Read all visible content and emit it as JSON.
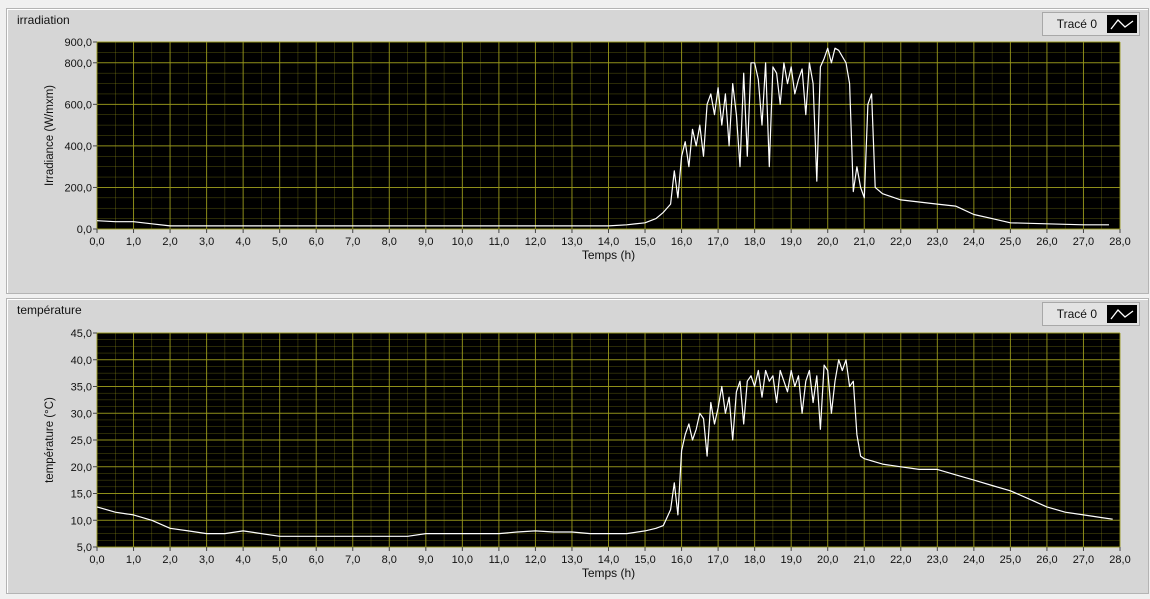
{
  "chart_data": [
    {
      "type": "line",
      "panel_title": "irradiation",
      "legend": {
        "label": "Tracé 0"
      },
      "xlabel": "Temps (h)",
      "ylabel": "Irradiance (W/mxm)",
      "xlim": [
        0,
        28
      ],
      "ylim": [
        0,
        900
      ],
      "xticks": [
        "0,0",
        "1,0",
        "2,0",
        "3,0",
        "4,0",
        "5,0",
        "6,0",
        "7,0",
        "8,0",
        "9,0",
        "10,0",
        "11,0",
        "12,0",
        "13,0",
        "14,0",
        "15,0",
        "16,0",
        "17,0",
        "18,0",
        "19,0",
        "20,0",
        "21,0",
        "22,0",
        "23,0",
        "24,0",
        "25,0",
        "26,0",
        "27,0",
        "28,0"
      ],
      "yticks": [
        {
          "v": 0,
          "label": "0,0"
        },
        {
          "v": 200,
          "label": "200,0"
        },
        {
          "v": 400,
          "label": "400,0"
        },
        {
          "v": 600,
          "label": "600,0"
        },
        {
          "v": 800,
          "label": "800,0"
        },
        {
          "v": 900,
          "label": "900,0"
        }
      ],
      "grid": true,
      "colors": {
        "plot_bg": "#000000",
        "grid": "#9a9a1c",
        "line": "#ffffff"
      },
      "series": [
        {
          "x": [
            0,
            0.5,
            1,
            1.5,
            2,
            3,
            4,
            5,
            6,
            7,
            8,
            9,
            10,
            11,
            12,
            13,
            14,
            14.5,
            15,
            15.3,
            15.5,
            15.7,
            15.8,
            15.9,
            16,
            16.1,
            16.2,
            16.3,
            16.4,
            16.5,
            16.6,
            16.7,
            16.8,
            16.9,
            17,
            17.1,
            17.2,
            17.3,
            17.4,
            17.5,
            17.6,
            17.7,
            17.8,
            17.9,
            18,
            18.1,
            18.2,
            18.3,
            18.4,
            18.5,
            18.6,
            18.7,
            18.8,
            18.9,
            19,
            19.1,
            19.2,
            19.3,
            19.4,
            19.5,
            19.6,
            19.7,
            19.8,
            19.9,
            20,
            20.1,
            20.2,
            20.3,
            20.4,
            20.5,
            20.6,
            20.7,
            20.8,
            20.9,
            21,
            21.1,
            21.2,
            21.3,
            21.5,
            22,
            22.5,
            23,
            23.5,
            24,
            24.5,
            25,
            26,
            27,
            27.7
          ],
          "y": [
            40,
            35,
            35,
            25,
            15,
            15,
            15,
            15,
            15,
            15,
            15,
            15,
            15,
            15,
            15,
            15,
            15,
            20,
            30,
            50,
            80,
            120,
            280,
            150,
            350,
            420,
            300,
            480,
            400,
            500,
            350,
            600,
            650,
            550,
            680,
            500,
            650,
            400,
            700,
            550,
            300,
            750,
            350,
            800,
            800,
            720,
            500,
            800,
            300,
            780,
            750,
            600,
            800,
            700,
            780,
            650,
            720,
            770,
            550,
            800,
            700,
            230,
            780,
            820,
            870,
            800,
            870,
            860,
            830,
            800,
            700,
            180,
            300,
            200,
            150,
            600,
            650,
            200,
            170,
            140,
            130,
            120,
            110,
            70,
            50,
            30,
            25,
            20,
            20
          ]
        }
      ]
    },
    {
      "type": "line",
      "panel_title": "température",
      "legend": {
        "label": "Tracé 0"
      },
      "xlabel": "Temps (h)",
      "ylabel": "température (°C)",
      "xlim": [
        0,
        28
      ],
      "ylim": [
        5,
        45
      ],
      "xticks": [
        "0,0",
        "1,0",
        "2,0",
        "3,0",
        "4,0",
        "5,0",
        "6,0",
        "7,0",
        "8,0",
        "9,0",
        "10,0",
        "11,0",
        "12,0",
        "13,0",
        "14,0",
        "15,0",
        "16,0",
        "17,0",
        "18,0",
        "19,0",
        "20,0",
        "21,0",
        "22,0",
        "23,0",
        "24,0",
        "25,0",
        "26,0",
        "27,0",
        "28,0"
      ],
      "yticks": [
        {
          "v": 5,
          "label": "5,0"
        },
        {
          "v": 10,
          "label": "10,0"
        },
        {
          "v": 15,
          "label": "15,0"
        },
        {
          "v": 20,
          "label": "20,0"
        },
        {
          "v": 25,
          "label": "25,0"
        },
        {
          "v": 30,
          "label": "30,0"
        },
        {
          "v": 35,
          "label": "35,0"
        },
        {
          "v": 40,
          "label": "40,0"
        },
        {
          "v": 45,
          "label": "45,0"
        }
      ],
      "grid": true,
      "colors": {
        "plot_bg": "#000000",
        "grid": "#9a9a1c",
        "line": "#ffffff"
      },
      "series": [
        {
          "x": [
            0,
            0.5,
            1,
            1.5,
            2,
            2.5,
            3,
            3.5,
            4,
            4.5,
            5,
            5.5,
            6,
            6.5,
            7,
            7.5,
            8,
            8.5,
            9,
            9.5,
            10,
            10.5,
            11,
            11.5,
            12,
            12.5,
            13,
            13.5,
            14,
            14.5,
            15,
            15.3,
            15.5,
            15.7,
            15.8,
            15.9,
            16,
            16.1,
            16.2,
            16.3,
            16.4,
            16.5,
            16.6,
            16.7,
            16.8,
            16.9,
            17,
            17.1,
            17.2,
            17.3,
            17.4,
            17.5,
            17.6,
            17.7,
            17.8,
            17.9,
            18,
            18.1,
            18.2,
            18.3,
            18.4,
            18.5,
            18.6,
            18.7,
            18.8,
            18.9,
            19,
            19.1,
            19.2,
            19.3,
            19.4,
            19.5,
            19.6,
            19.7,
            19.8,
            19.9,
            20,
            20.1,
            20.2,
            20.3,
            20.4,
            20.5,
            20.6,
            20.7,
            20.8,
            20.9,
            21,
            21.5,
            22,
            22.5,
            23,
            23.5,
            24,
            24.5,
            25,
            25.5,
            26,
            26.5,
            27,
            27.5,
            27.8
          ],
          "y": [
            12.5,
            11.5,
            11,
            10,
            8.5,
            8,
            7.5,
            7.5,
            8,
            7.5,
            7,
            7,
            7,
            7,
            7,
            7,
            7,
            7,
            7.5,
            7.5,
            7.5,
            7.5,
            7.5,
            7.8,
            8,
            7.8,
            7.8,
            7.5,
            7.5,
            7.5,
            8,
            8.5,
            9,
            12,
            17,
            11,
            23,
            26,
            28,
            25,
            27,
            30,
            29,
            22,
            32,
            28,
            31,
            35,
            30,
            33,
            25,
            34,
            36,
            28,
            36,
            37,
            35,
            38,
            33,
            38,
            36,
            37,
            32,
            38,
            36,
            34,
            38,
            35,
            37,
            30,
            36,
            38,
            32,
            37,
            27,
            39,
            38,
            30,
            36,
            40,
            38,
            40,
            35,
            36,
            26,
            22,
            21.5,
            20.5,
            20,
            19.5,
            19.5,
            18.5,
            17.5,
            16.5,
            15.5,
            14,
            12.5,
            11.5,
            11,
            10.5,
            10.2
          ]
        }
      ]
    }
  ]
}
